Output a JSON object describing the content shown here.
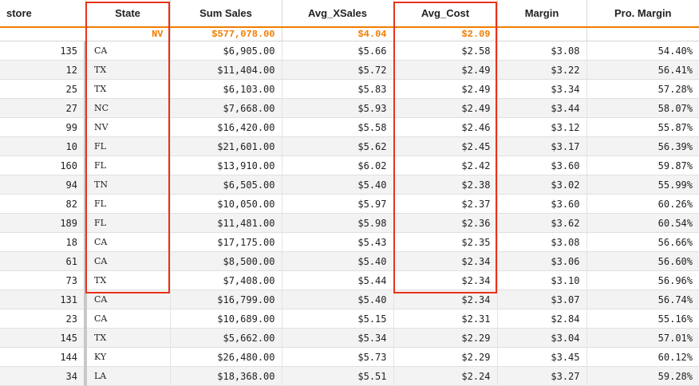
{
  "columns": [
    {
      "key": "store",
      "label": "store"
    },
    {
      "key": "state",
      "label": "State"
    },
    {
      "key": "sum_sales",
      "label": "Sum Sales"
    },
    {
      "key": "avg_xsales",
      "label": "Avg_XSales"
    },
    {
      "key": "avg_cost",
      "label": "Avg_Cost"
    },
    {
      "key": "margin",
      "label": "Margin"
    },
    {
      "key": "pro_margin",
      "label": "Pro. Margin"
    }
  ],
  "summary": {
    "store": "",
    "state": "NV",
    "sum_sales": "$577,078.00",
    "avg_xsales": "$4.04",
    "avg_cost": "$2.09",
    "margin": "",
    "pro_margin": ""
  },
  "rows": [
    {
      "store": "135",
      "state": "CA",
      "sum_sales": "$6,905.00",
      "avg_xsales": "$5.66",
      "avg_cost": "$2.58",
      "margin": "$3.08",
      "pro_margin": "54.40%"
    },
    {
      "store": "12",
      "state": "TX",
      "sum_sales": "$11,404.00",
      "avg_xsales": "$5.72",
      "avg_cost": "$2.49",
      "margin": "$3.22",
      "pro_margin": "56.41%"
    },
    {
      "store": "25",
      "state": "TX",
      "sum_sales": "$6,103.00",
      "avg_xsales": "$5.83",
      "avg_cost": "$2.49",
      "margin": "$3.34",
      "pro_margin": "57.28%"
    },
    {
      "store": "27",
      "state": "NC",
      "sum_sales": "$7,668.00",
      "avg_xsales": "$5.93",
      "avg_cost": "$2.49",
      "margin": "$3.44",
      "pro_margin": "58.07%"
    },
    {
      "store": "99",
      "state": "NV",
      "sum_sales": "$16,420.00",
      "avg_xsales": "$5.58",
      "avg_cost": "$2.46",
      "margin": "$3.12",
      "pro_margin": "55.87%"
    },
    {
      "store": "10",
      "state": "FL",
      "sum_sales": "$21,601.00",
      "avg_xsales": "$5.62",
      "avg_cost": "$2.45",
      "margin": "$3.17",
      "pro_margin": "56.39%"
    },
    {
      "store": "160",
      "state": "FL",
      "sum_sales": "$13,910.00",
      "avg_xsales": "$6.02",
      "avg_cost": "$2.42",
      "margin": "$3.60",
      "pro_margin": "59.87%"
    },
    {
      "store": "94",
      "state": "TN",
      "sum_sales": "$6,505.00",
      "avg_xsales": "$5.40",
      "avg_cost": "$2.38",
      "margin": "$3.02",
      "pro_margin": "55.99%"
    },
    {
      "store": "82",
      "state": "FL",
      "sum_sales": "$10,050.00",
      "avg_xsales": "$5.97",
      "avg_cost": "$2.37",
      "margin": "$3.60",
      "pro_margin": "60.26%"
    },
    {
      "store": "189",
      "state": "FL",
      "sum_sales": "$11,481.00",
      "avg_xsales": "$5.98",
      "avg_cost": "$2.36",
      "margin": "$3.62",
      "pro_margin": "60.54%"
    },
    {
      "store": "18",
      "state": "CA",
      "sum_sales": "$17,175.00",
      "avg_xsales": "$5.43",
      "avg_cost": "$2.35",
      "margin": "$3.08",
      "pro_margin": "56.66%"
    },
    {
      "store": "61",
      "state": "CA",
      "sum_sales": "$8,500.00",
      "avg_xsales": "$5.40",
      "avg_cost": "$2.34",
      "margin": "$3.06",
      "pro_margin": "56.60%"
    },
    {
      "store": "73",
      "state": "TX",
      "sum_sales": "$7,408.00",
      "avg_xsales": "$5.44",
      "avg_cost": "$2.34",
      "margin": "$3.10",
      "pro_margin": "56.96%"
    },
    {
      "store": "131",
      "state": "CA",
      "sum_sales": "$16,799.00",
      "avg_xsales": "$5.40",
      "avg_cost": "$2.34",
      "margin": "$3.07",
      "pro_margin": "56.74%"
    },
    {
      "store": "23",
      "state": "CA",
      "sum_sales": "$10,689.00",
      "avg_xsales": "$5.15",
      "avg_cost": "$2.31",
      "margin": "$2.84",
      "pro_margin": "55.16%"
    },
    {
      "store": "145",
      "state": "TX",
      "sum_sales": "$5,662.00",
      "avg_xsales": "$5.34",
      "avg_cost": "$2.29",
      "margin": "$3.04",
      "pro_margin": "57.01%"
    },
    {
      "store": "144",
      "state": "KY",
      "sum_sales": "$26,480.00",
      "avg_xsales": "$5.73",
      "avg_cost": "$2.29",
      "margin": "$3.45",
      "pro_margin": "60.12%"
    },
    {
      "store": "34",
      "state": "LA",
      "sum_sales": "$18,368.00",
      "avg_xsales": "$5.51",
      "avg_cost": "$2.24",
      "margin": "$3.27",
      "pro_margin": "59.28%"
    }
  ],
  "colors": {
    "accent": "#f07d00",
    "highlight": "#e8321a"
  }
}
